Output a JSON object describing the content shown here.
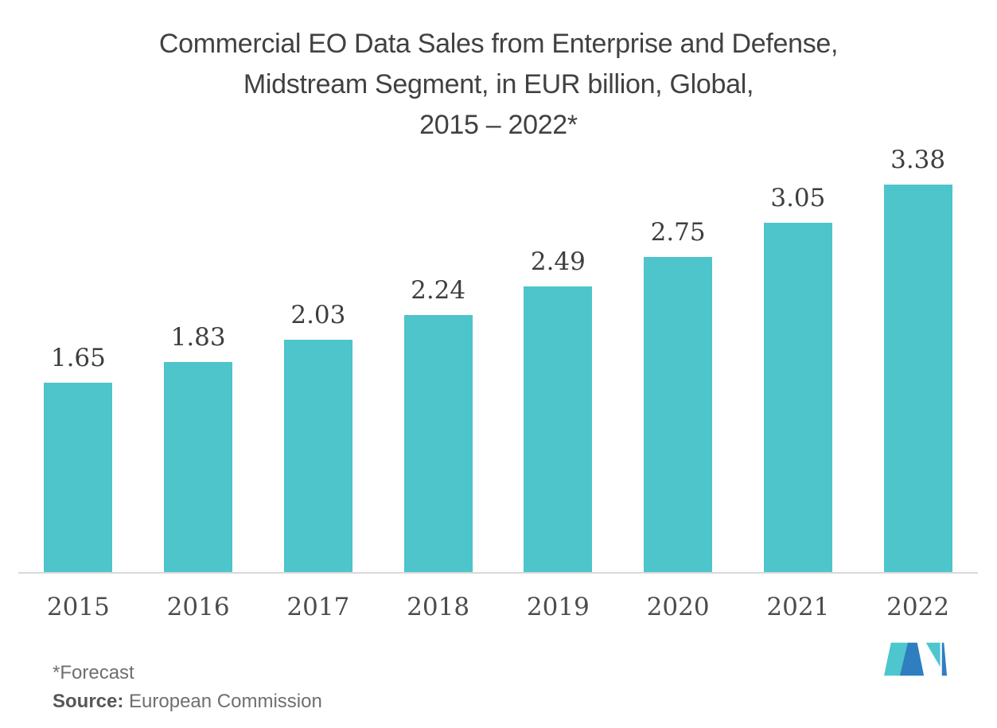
{
  "title": {
    "lines": [
      "Commercial EO Data Sales from Enterprise and Defense,",
      "Midstream Segment, in EUR billion, Global,",
      "2015 – 2022*"
    ]
  },
  "chart_data": {
    "type": "bar",
    "title": "Commercial EO Data Sales from Enterprise and Defense, Midstream Segment, in EUR billion, Global, 2015 – 2022*",
    "categories": [
      "2015",
      "2016",
      "2017",
      "2018",
      "2019",
      "2020",
      "2021",
      "2022"
    ],
    "values": [
      1.65,
      1.83,
      2.03,
      2.24,
      2.49,
      2.75,
      3.05,
      3.38
    ],
    "value_labels": [
      "1.65",
      "1.83",
      "2.03",
      "2.24",
      "2.49",
      "2.75",
      "3.05",
      "3.38"
    ],
    "xlabel": "",
    "ylabel": "",
    "ylim": [
      0,
      3.38
    ],
    "grid": false,
    "legend": null,
    "bar_color": "#4ec4cb",
    "value_label_color": "#3e3e3e",
    "axis_label_color": "#4c4c4c",
    "axis_line_color": "#d9d9d9"
  },
  "footer": {
    "forecast_note": "*Forecast",
    "source_label": "Source:",
    "source_value": "European Commission"
  },
  "logo": {
    "name": "Mordor Intelligence",
    "teal": "#4dc6ce",
    "blue": "#2f7ec0"
  }
}
